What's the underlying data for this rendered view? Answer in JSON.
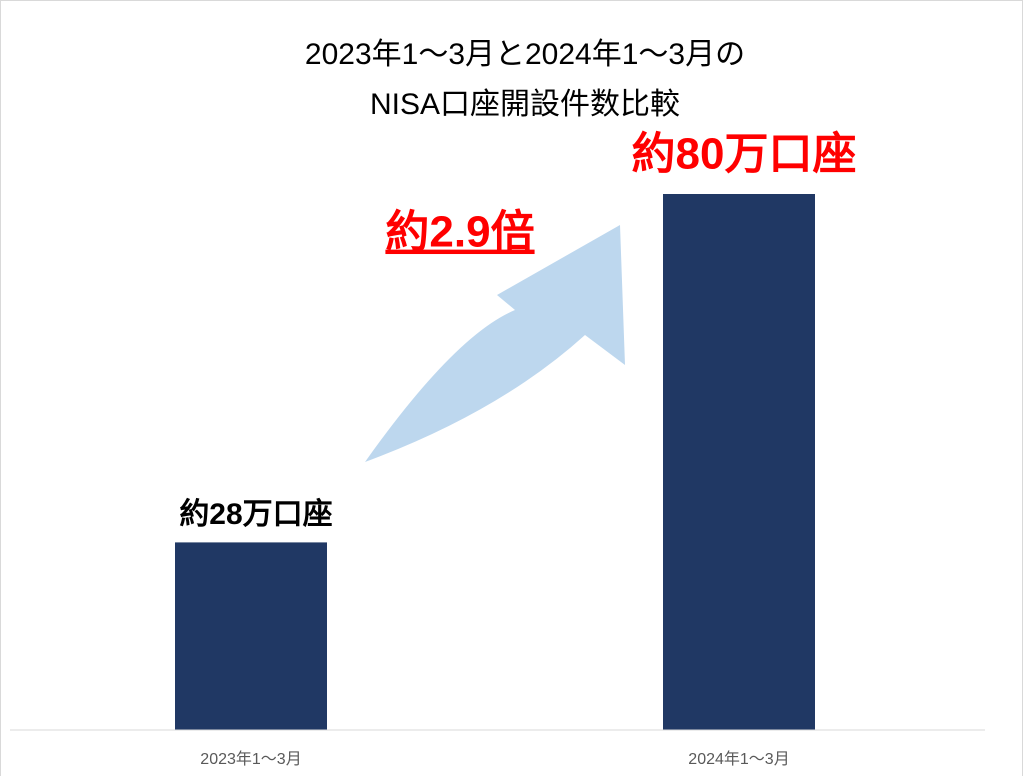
{
  "chart_data": {
    "type": "bar",
    "title": "2023年1～3月と2024年1～3月の\nNISA口座開設件数比較",
    "categories": [
      "2023年1～3月",
      "2024年1～3月"
    ],
    "values": [
      28,
      80
    ],
    "value_labels": [
      "約28万口座",
      "約80万口座"
    ],
    "value_label_colors": [
      "#000000",
      "#ff0000"
    ],
    "color": "#203864",
    "ylim": [
      0,
      100
    ],
    "annotation": "約2.9倍",
    "annotation_color": "#ff0000"
  }
}
